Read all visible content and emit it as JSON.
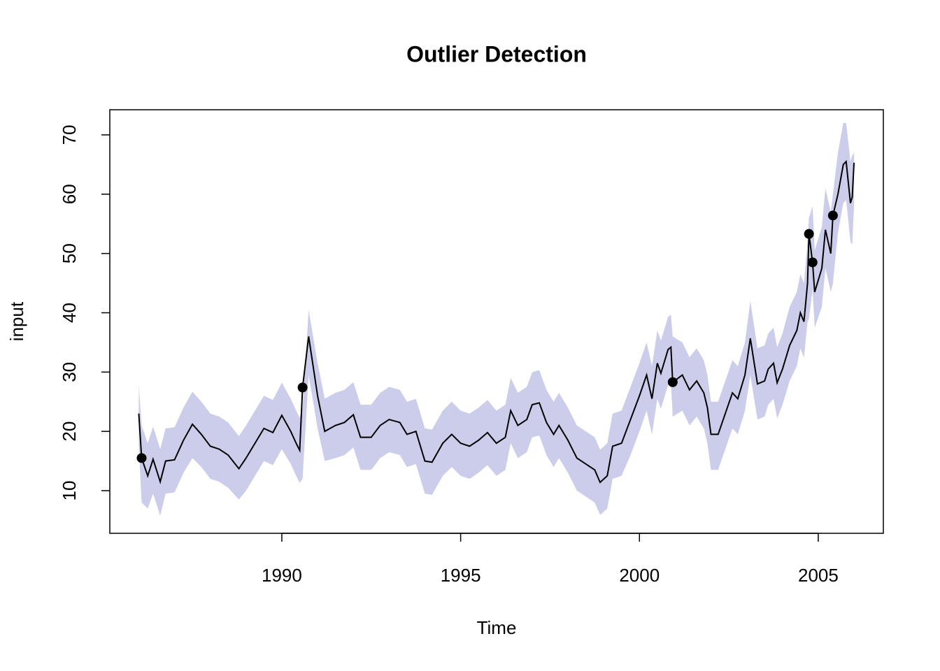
{
  "chart_data": {
    "type": "line",
    "title": "Outlier Detection",
    "x_label": "Time",
    "y_label": "input",
    "xlim": [
      1985.19,
      2006.82
    ],
    "xticks": [
      1990,
      1995,
      2000,
      2005
    ],
    "ylim": [
      2.81,
      74.24
    ],
    "yticks": [
      10,
      20,
      30,
      40,
      50,
      60,
      70
    ],
    "color": "#000000",
    "x": [
      1986.0,
      1986.08,
      1986.25,
      1986.4,
      1986.6,
      1986.75,
      1987.0,
      1987.25,
      1987.5,
      1987.75,
      1988.0,
      1988.25,
      1988.5,
      1988.8,
      1989.0,
      1989.25,
      1989.5,
      1989.75,
      1990.0,
      1990.25,
      1990.4,
      1990.5,
      1990.58,
      1990.75,
      1991.0,
      1991.2,
      1991.5,
      1991.75,
      1992.0,
      1992.2,
      1992.5,
      1992.75,
      1993.0,
      1993.3,
      1993.5,
      1993.75,
      1994.0,
      1994.2,
      1994.5,
      1994.75,
      1995.0,
      1995.25,
      1995.5,
      1995.75,
      1996.0,
      1996.25,
      1996.4,
      1996.6,
      1996.85,
      1997.0,
      1997.2,
      1997.4,
      1997.6,
      1997.75,
      1998.0,
      1998.25,
      1998.5,
      1998.75,
      1998.9,
      1999.1,
      1999.25,
      1999.5,
      1999.75,
      2000.0,
      2000.2,
      2000.35,
      2000.5,
      2000.6,
      2000.8,
      2000.88,
      2000.93,
      2001.2,
      2001.4,
      2001.6,
      2001.8,
      2001.9,
      2002.0,
      2002.2,
      2002.4,
      2002.6,
      2002.75,
      2002.95,
      2003.1,
      2003.3,
      2003.5,
      2003.6,
      2003.75,
      2003.85,
      2004.0,
      2004.2,
      2004.4,
      2004.5,
      2004.6,
      2004.7,
      2004.74,
      2004.84,
      2004.9,
      2005.1,
      2005.2,
      2005.35,
      2005.41,
      2005.55,
      2005.7,
      2005.78,
      2005.9,
      2005.95,
      2006.0
    ],
    "values": [
      23,
      15.5,
      12.5,
      15.3,
      11.5,
      15,
      15.2,
      18.5,
      21.2,
      19.5,
      17.5,
      17,
      16,
      13.7,
      15.5,
      18,
      20.5,
      19.8,
      22.7,
      20,
      18,
      16.8,
      27.4,
      36,
      26,
      20,
      21,
      21.5,
      22.8,
      19,
      19,
      21,
      22,
      21.5,
      19.5,
      20,
      15,
      14.8,
      18,
      19.5,
      18,
      17.5,
      18.5,
      19.8,
      18,
      19,
      23.5,
      21,
      22,
      24.5,
      24.8,
      21.5,
      19.5,
      21,
      18.5,
      15.5,
      14.5,
      13.5,
      11.4,
      12.5,
      17.5,
      18,
      22,
      26,
      29.5,
      25.5,
      31.5,
      29.8,
      33.8,
      34.2,
      28.3,
      29.5,
      27,
      28.5,
      26.5,
      24,
      19.5,
      19.5,
      23,
      26.5,
      25.5,
      29.5,
      35.7,
      28,
      28.5,
      30.5,
      31.5,
      28.2,
      30.5,
      34.5,
      37,
      40,
      38.5,
      45,
      53.3,
      48.5,
      43.5,
      47.5,
      54,
      50,
      56.4,
      60,
      65,
      65.5,
      58.5,
      59.5,
      65.3
    ],
    "band": {
      "color": "#cccceb",
      "upper": [
        27.8,
        21,
        18,
        20.8,
        17,
        20.5,
        20.7,
        24,
        26.7,
        25,
        23,
        22.5,
        21.5,
        19.2,
        21,
        23.5,
        26,
        25.3,
        28.2,
        25.5,
        23.5,
        22.3,
        24,
        40.5,
        31.5,
        25.5,
        26.5,
        27,
        28.3,
        24.5,
        24.5,
        26.5,
        27.5,
        27,
        25,
        25.5,
        20.5,
        20.3,
        23.5,
        25,
        23.5,
        23,
        24,
        25.3,
        23.5,
        24.5,
        29,
        26.5,
        27.5,
        30,
        30.3,
        27,
        25,
        26.5,
        24,
        21,
        20,
        19,
        16.9,
        18,
        23,
        23.5,
        27.5,
        31.5,
        35,
        31,
        37,
        35.3,
        39.3,
        39.7,
        36,
        35,
        32.5,
        34,
        32,
        29.5,
        25,
        25,
        28.5,
        32,
        31,
        35,
        42,
        34,
        34.5,
        36.5,
        37.5,
        34.2,
        36.5,
        41,
        43.5,
        46.5,
        45,
        52,
        56,
        58,
        50.5,
        54.5,
        61,
        57,
        60,
        67,
        72,
        72,
        65.5,
        66.5,
        67
      ],
      "lower": [
        17.5,
        8,
        7,
        9.5,
        5.8,
        9.5,
        9.7,
        13,
        15.5,
        14,
        12,
        11.5,
        10.5,
        8.5,
        10,
        12.5,
        15,
        14.3,
        17,
        14.5,
        12.5,
        11.3,
        12,
        29.5,
        20.5,
        15,
        15.5,
        16,
        17.3,
        13.5,
        13.5,
        15.5,
        16.5,
        16,
        14,
        14.5,
        9.5,
        9.3,
        12.5,
        14,
        12.5,
        12,
        13,
        14.3,
        12.5,
        13.5,
        18,
        15.5,
        16.5,
        19,
        19.3,
        16,
        14,
        15.5,
        13,
        10,
        9,
        8,
        5.9,
        7,
        12,
        12.5,
        16,
        20,
        23.5,
        19.5,
        25.5,
        23.8,
        27.8,
        28.2,
        22.5,
        23.5,
        21,
        22.5,
        20.5,
        18,
        13.5,
        13.5,
        17,
        20.5,
        19.5,
        23.5,
        29.5,
        22,
        22.5,
        24.5,
        25.5,
        22.2,
        24.5,
        28.5,
        31,
        34,
        32.5,
        38.5,
        39,
        44,
        37.5,
        41,
        47.5,
        43.5,
        45,
        53.5,
        58.5,
        59,
        52,
        51.5,
        58
      ]
    },
    "outliers": {
      "color": "#000000",
      "x": [
        1986.08,
        1990.58,
        2000.93,
        2004.74,
        2004.84,
        2005.41
      ],
      "values": [
        15.5,
        27.4,
        28.3,
        53.3,
        48.5,
        56.4
      ]
    }
  }
}
